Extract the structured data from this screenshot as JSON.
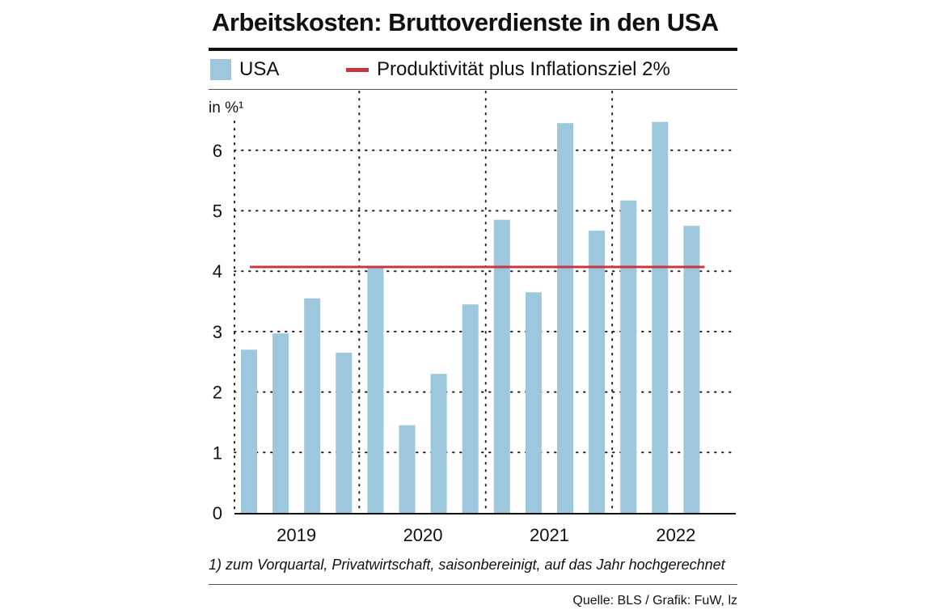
{
  "chart_data": {
    "type": "bar",
    "title": "Arbeitskosten: Bruttoverdienste in den USA",
    "ylabel": "in %¹",
    "ylim": [
      0,
      6.5
    ],
    "yticks": [
      "0",
      "1",
      "2",
      "3",
      "4",
      "5",
      "6"
    ],
    "x_groups": [
      "2019",
      "2020",
      "2021",
      "2022"
    ],
    "categories": [
      "Q1 2019",
      "Q2 2019",
      "Q3 2019",
      "Q4 2019",
      "Q1 2020",
      "Q2 2020",
      "Q3 2020",
      "Q4 2020",
      "Q1 2021",
      "Q2 2021",
      "Q3 2021",
      "Q4 2021",
      "Q1 2022",
      "Q2 2022",
      "Q3 2022"
    ],
    "series": [
      {
        "name": "USA",
        "type": "bar",
        "color": "#9dc7dd",
        "values": [
          2.7,
          2.97,
          3.55,
          2.65,
          4.05,
          1.45,
          2.3,
          3.45,
          4.85,
          3.65,
          6.45,
          4.67,
          5.17,
          6.47,
          4.75
        ]
      },
      {
        "name": "Produktivität plus Inflationsziel 2%",
        "type": "line",
        "color": "#c8363f",
        "values": [
          4.07,
          4.07,
          4.07,
          4.07,
          4.07,
          4.07,
          4.07,
          4.07,
          4.07,
          4.07,
          4.07,
          4.07,
          4.07,
          4.07,
          4.07
        ]
      }
    ],
    "grid": true,
    "legend": "top",
    "footnote": "1) zum Vorquartal, Privatwirtschaft, saisonbereinigt, auf das Jahr hochgerechnet",
    "source": "Quelle: BLS / Grafik: FuW, lz"
  }
}
